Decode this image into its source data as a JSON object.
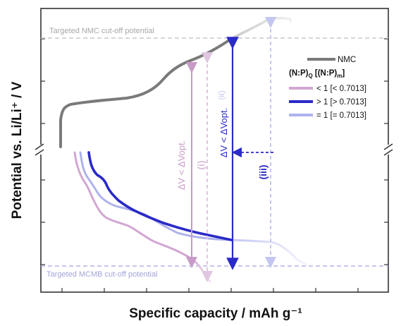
{
  "chart_data": {
    "type": "line",
    "xlabel": "Specific capacity / mAh g⁻¹",
    "ylabel": "Potential vs. Li/Li⁺ / V",
    "grid": false,
    "legend_position": "top-right",
    "axis_break": "potential axis broken between cathode and anode regions",
    "cutoff_lines": [
      {
        "name": "Targeted NMC cut-off potential",
        "color": "#c8c8c8"
      },
      {
        "name": "Targeted MCMB cut-off potential",
        "color": "#b4b4e6"
      }
    ],
    "legend": {
      "header": "(N:P)Q [(N:P)m]",
      "entries": [
        {
          "label": "NMC",
          "color": "#7a7a7a"
        },
        {
          "label": "< 1 [< 0.7013]",
          "color": "#d2a6d2"
        },
        {
          "label": "> 1 [> 0.7013]",
          "color": "#2a2ac8"
        },
        {
          "label": "= 1 [= 0.7013]",
          "color": "#aeb2ec"
        }
      ]
    },
    "annotations": {
      "dv_label_pink": "ΔV < ΔVopt.",
      "dv_label_blue": "ΔV < ΔVopt.",
      "i": "(i)",
      "ii": "(ii)",
      "iii": "(iii)"
    }
  }
}
